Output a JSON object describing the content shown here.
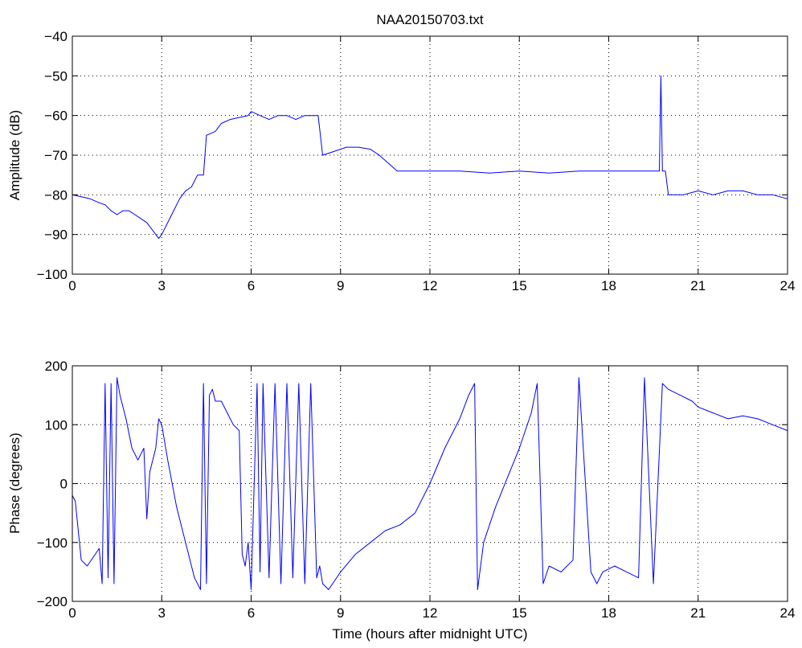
{
  "chart_data": [
    {
      "type": "line",
      "title": "NAA20150703.txt",
      "xlabel": "",
      "ylabel": "Amplitude (dB)",
      "xlim": [
        0,
        24
      ],
      "ylim": [
        -100,
        -40
      ],
      "x_ticks": [
        0,
        3,
        6,
        9,
        12,
        15,
        18,
        21,
        24
      ],
      "y_ticks": [
        -100,
        -90,
        -80,
        -70,
        -60,
        -50,
        -40
      ],
      "x_tick_labels": [
        "0",
        "3",
        "6",
        "9",
        "12",
        "15",
        "18",
        "21",
        "24"
      ],
      "y_tick_labels": [
        "−100",
        "−90",
        "−80",
        "−70",
        "−60",
        "−50",
        "−40"
      ],
      "grid": true,
      "grid_style": "dotted",
      "line_color": "#0000ff",
      "series": [
        {
          "x": [
            0,
            0.3,
            0.6,
            0.9,
            1.1,
            1.3,
            1.5,
            1.7,
            1.9,
            2.1,
            2.3,
            2.5,
            2.7,
            2.9,
            3.0,
            3.2,
            3.4,
            3.6,
            3.8,
            4.0,
            4.2,
            4.4,
            4.5,
            4.8,
            5.0,
            5.3,
            5.6,
            5.9,
            6.0,
            6.3,
            6.6,
            6.9,
            7.2,
            7.5,
            7.8,
            8.1,
            8.25,
            8.4,
            8.8,
            9.2,
            9.6,
            10.0,
            10.3,
            10.6,
            10.9,
            11.5,
            12.0,
            13.0,
            14.0,
            15.0,
            16.0,
            17.0,
            18.0,
            19.0,
            19.5,
            19.7,
            19.75,
            19.8,
            19.9,
            20.0,
            20.5,
            21.0,
            21.5,
            22.0,
            22.5,
            23.0,
            23.5,
            24.0
          ],
          "y": [
            -80,
            -80.5,
            -81,
            -82,
            -82.5,
            -84,
            -85,
            -84,
            -84,
            -85,
            -86,
            -87,
            -89,
            -91,
            -90,
            -87,
            -84,
            -81,
            -79,
            -78,
            -75,
            -75,
            -65,
            -64,
            -62,
            -61,
            -60.5,
            -60,
            -59,
            -60,
            -61,
            -60,
            -60,
            -61,
            -60,
            -60,
            -60,
            -70,
            -69,
            -68,
            -68,
            -68.5,
            -70,
            -72,
            -74,
            -74,
            -74,
            -74,
            -74.5,
            -74,
            -74.5,
            -74,
            -74,
            -74,
            -74,
            -74,
            -50,
            -74,
            -74,
            -80,
            -80,
            -79,
            -80,
            -79,
            -79,
            -80,
            -80,
            -81
          ]
        }
      ]
    },
    {
      "type": "line",
      "title": "",
      "xlabel": "Time (hours after midnight UTC)",
      "ylabel": "Phase (degrees)",
      "xlim": [
        0,
        24
      ],
      "ylim": [
        -200,
        200
      ],
      "x_ticks": [
        0,
        3,
        6,
        9,
        12,
        15,
        18,
        21,
        24
      ],
      "y_ticks": [
        -200,
        -100,
        0,
        100,
        200
      ],
      "x_tick_labels": [
        "0",
        "3",
        "6",
        "9",
        "12",
        "15",
        "18",
        "21",
        "24"
      ],
      "y_tick_labels": [
        "−200",
        "−100",
        "0",
        "100",
        "200"
      ],
      "grid": true,
      "grid_style": "dotted",
      "line_color": "#0000ff",
      "series": [
        {
          "x": [
            0,
            0.1,
            0.2,
            0.3,
            0.5,
            0.7,
            0.9,
            1.0,
            1.1,
            1.2,
            1.3,
            1.4,
            1.5,
            1.6,
            1.8,
            2.0,
            2.2,
            2.4,
            2.5,
            2.6,
            2.8,
            2.9,
            3.0,
            3.2,
            3.5,
            3.8,
            4.1,
            4.3,
            4.4,
            4.5,
            4.6,
            4.7,
            4.8,
            5.0,
            5.2,
            5.4,
            5.6,
            5.7,
            5.8,
            5.9,
            6.0,
            6.2,
            6.3,
            6.4,
            6.6,
            6.8,
            7.0,
            7.2,
            7.4,
            7.6,
            7.8,
            8.0,
            8.2,
            8.3,
            8.4,
            8.6,
            9.0,
            9.5,
            10.0,
            10.5,
            11.0,
            11.5,
            12.0,
            12.5,
            13.0,
            13.3,
            13.5,
            13.6,
            13.8,
            14.2,
            14.6,
            15.0,
            15.4,
            15.6,
            15.8,
            16.0,
            16.4,
            16.8,
            17.0,
            17.4,
            17.6,
            17.8,
            18.2,
            18.6,
            19.0,
            19.2,
            19.5,
            19.8,
            20.0,
            20.4,
            20.8,
            21.0,
            21.5,
            22.0,
            22.5,
            23.0,
            23.5,
            24.0
          ],
          "y": [
            -20,
            -30,
            -80,
            -130,
            -140,
            -125,
            -110,
            -170,
            170,
            -160,
            170,
            -170,
            180,
            150,
            110,
            60,
            40,
            60,
            -60,
            20,
            60,
            110,
            100,
            40,
            -40,
            -100,
            -160,
            -180,
            170,
            -170,
            150,
            160,
            140,
            140,
            120,
            100,
            90,
            -120,
            -140,
            -100,
            -180,
            170,
            -150,
            170,
            -160,
            170,
            -170,
            170,
            -160,
            170,
            -170,
            170,
            -160,
            -140,
            -170,
            -180,
            -150,
            -120,
            -100,
            -80,
            -70,
            -50,
            0,
            60,
            110,
            150,
            170,
            -180,
            -100,
            -40,
            10,
            60,
            120,
            170,
            -170,
            -140,
            -150,
            -130,
            180,
            -150,
            -170,
            -150,
            -140,
            -150,
            -160,
            180,
            -170,
            170,
            160,
            150,
            140,
            130,
            120,
            110,
            115,
            110,
            100,
            90
          ]
        }
      ]
    }
  ]
}
